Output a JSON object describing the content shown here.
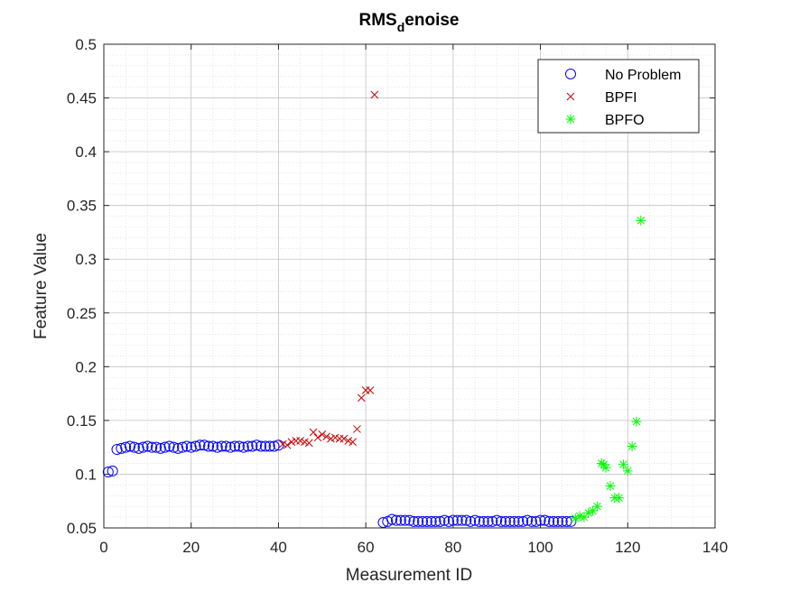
{
  "chart_data": {
    "type": "scatter",
    "title": {
      "main": "RMS",
      "sub": "d",
      "rest": "enoise"
    },
    "xlabel": "Measurement ID",
    "ylabel": "Feature Value",
    "xlim": [
      0,
      140
    ],
    "ylim": [
      0.05,
      0.5
    ],
    "xticks": [
      0,
      20,
      40,
      60,
      80,
      100,
      120,
      140
    ],
    "xtick_labels": [
      "0",
      "20",
      "40",
      "60",
      "80",
      "100",
      "120",
      "140"
    ],
    "yticks": [
      0.05,
      0.1,
      0.15,
      0.2,
      0.25,
      0.3,
      0.35,
      0.4,
      0.45,
      0.5
    ],
    "ytick_labels": [
      "0.05",
      "0.1",
      "0.15",
      "0.2",
      "0.25",
      "0.3",
      "0.35",
      "0.4",
      "0.45",
      "0.5"
    ],
    "grid": true,
    "minor_grid": true,
    "legend_position": "top-right",
    "series": [
      {
        "name": "No Problem",
        "marker": "circle",
        "color": "#0000FF",
        "x": [
          1,
          2,
          3,
          4,
          5,
          6,
          7,
          8,
          9,
          10,
          11,
          12,
          13,
          14,
          15,
          16,
          17,
          18,
          19,
          20,
          21,
          22,
          23,
          24,
          25,
          26,
          27,
          28,
          29,
          30,
          31,
          32,
          33,
          34,
          35,
          36,
          37,
          38,
          39,
          40,
          64,
          65,
          66,
          67,
          68,
          69,
          70,
          71,
          72,
          73,
          74,
          75,
          76,
          77,
          78,
          79,
          80,
          81,
          82,
          83,
          84,
          85,
          86,
          87,
          88,
          89,
          90,
          91,
          92,
          93,
          94,
          95,
          96,
          97,
          98,
          99,
          100,
          101,
          102,
          103,
          104,
          105,
          106,
          107
        ],
        "y": [
          0.102,
          0.103,
          0.123,
          0.124,
          0.125,
          0.126,
          0.125,
          0.124,
          0.125,
          0.126,
          0.125,
          0.125,
          0.124,
          0.125,
          0.126,
          0.125,
          0.124,
          0.125,
          0.126,
          0.125,
          0.126,
          0.127,
          0.127,
          0.126,
          0.126,
          0.125,
          0.126,
          0.126,
          0.125,
          0.126,
          0.126,
          0.125,
          0.126,
          0.126,
          0.127,
          0.126,
          0.126,
          0.126,
          0.126,
          0.127,
          0.055,
          0.056,
          0.058,
          0.057,
          0.057,
          0.057,
          0.057,
          0.056,
          0.056,
          0.056,
          0.056,
          0.056,
          0.056,
          0.056,
          0.057,
          0.056,
          0.057,
          0.057,
          0.057,
          0.057,
          0.056,
          0.057,
          0.056,
          0.056,
          0.056,
          0.056,
          0.057,
          0.056,
          0.056,
          0.056,
          0.056,
          0.056,
          0.056,
          0.057,
          0.056,
          0.056,
          0.057,
          0.057,
          0.056,
          0.056,
          0.056,
          0.056,
          0.056,
          0.056
        ]
      },
      {
        "name": "BPFI",
        "marker": "x",
        "color": "#CC0000",
        "x": [
          41,
          42,
          43,
          44,
          45,
          46,
          47,
          48,
          49,
          50,
          51,
          52,
          53,
          54,
          55,
          56,
          57,
          58,
          59,
          60,
          61,
          62
        ],
        "y": [
          0.128,
          0.127,
          0.13,
          0.131,
          0.131,
          0.13,
          0.129,
          0.139,
          0.134,
          0.137,
          0.135,
          0.133,
          0.134,
          0.133,
          0.133,
          0.131,
          0.13,
          0.142,
          0.171,
          0.178,
          0.178,
          0.453
        ]
      },
      {
        "name": "BPFO",
        "marker": "asterisk",
        "color": "#00FF00",
        "x": [
          108,
          109,
          110,
          111,
          112,
          113,
          114,
          114.5,
          115,
          116,
          117,
          118,
          119,
          120,
          121,
          122,
          123
        ],
        "y": [
          0.059,
          0.061,
          0.06,
          0.064,
          0.066,
          0.07,
          0.11,
          0.109,
          0.106,
          0.089,
          0.078,
          0.078,
          0.109,
          0.103,
          0.126,
          0.149,
          0.336
        ]
      }
    ]
  }
}
